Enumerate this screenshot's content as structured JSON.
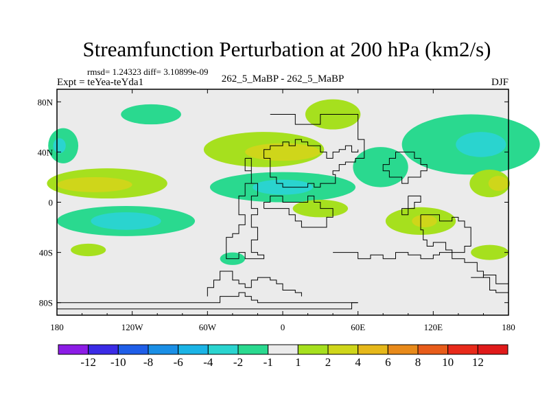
{
  "chart_data": {
    "type": "heatmap",
    "title": "Streamfunction Perturbation at 200 hPa (km2/s)",
    "stats_line": "rmsd= 1.24323 diff= 3.10899e-09",
    "left_label": "Expt = teYea-teYda1",
    "center_label": "262_5_MaBP - 262_5_MaBP",
    "right_label": "DJF",
    "xlim": [
      -180,
      180
    ],
    "ylim": [
      -90,
      90
    ],
    "x_ticks": [
      {
        "value": -180,
        "label": "180"
      },
      {
        "value": -120,
        "label": "120W"
      },
      {
        "value": -60,
        "label": "60W"
      },
      {
        "value": 0,
        "label": "0"
      },
      {
        "value": 60,
        "label": "60E"
      },
      {
        "value": 120,
        "label": "120E"
      },
      {
        "value": 180,
        "label": "180"
      }
    ],
    "y_ticks": [
      {
        "value": 80,
        "label": "80N"
      },
      {
        "value": 40,
        "label": "40N"
      },
      {
        "value": 0,
        "label": "0"
      },
      {
        "value": -40,
        "label": "40S"
      },
      {
        "value": -80,
        "label": "80S"
      }
    ],
    "colorbar": {
      "labels": [
        "-12",
        "-10",
        "-8",
        "-6",
        "-4",
        "-2",
        "-1",
        "1",
        "2",
        "4",
        "6",
        "8",
        "10",
        "12"
      ],
      "colors": [
        "#8c1ce6",
        "#3b2be6",
        "#1f5ee8",
        "#1a8fe6",
        "#1bb4e6",
        "#2ad4cf",
        "#2ad98f",
        "#ebebeb",
        "#a6e01e",
        "#cfd61a",
        "#e6b81a",
        "#e88a1a",
        "#e85c1a",
        "#e82a1a",
        "#e01a1a"
      ]
    },
    "anomaly_regions": [
      {
        "lon": 40,
        "lat": 70,
        "rx": 22,
        "ry": 12,
        "value": 1.5
      },
      {
        "lon": -105,
        "lat": 70,
        "rx": 24,
        "ry": 8,
        "value": -1.5
      },
      {
        "lon": -15,
        "lat": 42,
        "rx": 48,
        "ry": 14,
        "value": 1.5
      },
      {
        "lon": 0,
        "lat": 40,
        "rx": 30,
        "ry": 7,
        "value": 2.5
      },
      {
        "lon": -175,
        "lat": 45,
        "rx": 12,
        "ry": 14,
        "value": -1.5
      },
      {
        "lon": -178,
        "lat": 45,
        "rx": 5,
        "ry": 6,
        "value": -3
      },
      {
        "lon": 150,
        "lat": 46,
        "rx": 55,
        "ry": 24,
        "value": -1.5
      },
      {
        "lon": 158,
        "lat": 46,
        "rx": 20,
        "ry": 10,
        "value": -3
      },
      {
        "lon": 78,
        "lat": 28,
        "rx": 22,
        "ry": 16,
        "value": -1.5
      },
      {
        "lon": -140,
        "lat": 15,
        "rx": 48,
        "ry": 12,
        "value": 1.5
      },
      {
        "lon": -150,
        "lat": 14,
        "rx": 30,
        "ry": 6,
        "value": 2.5
      },
      {
        "lon": 0,
        "lat": 12,
        "rx": 58,
        "ry": 12,
        "value": -1.5
      },
      {
        "lon": 0,
        "lat": 12,
        "rx": 24,
        "ry": 6,
        "value": -3
      },
      {
        "lon": 30,
        "lat": -5,
        "rx": 22,
        "ry": 7,
        "value": 1.5
      },
      {
        "lon": -125,
        "lat": -15,
        "rx": 55,
        "ry": 12,
        "value": -1.5
      },
      {
        "lon": -125,
        "lat": -15,
        "rx": 28,
        "ry": 7,
        "value": -3
      },
      {
        "lon": 110,
        "lat": -15,
        "rx": 28,
        "ry": 11,
        "value": 1.5
      },
      {
        "lon": 113,
        "lat": -15,
        "rx": 10,
        "ry": 5,
        "value": 2.5
      },
      {
        "lon": 165,
        "lat": 15,
        "rx": 16,
        "ry": 11,
        "value": 1.5
      },
      {
        "lon": 172,
        "lat": 15,
        "rx": 8,
        "ry": 6,
        "value": 2.5
      },
      {
        "lon": -155,
        "lat": -38,
        "rx": 14,
        "ry": 5,
        "value": 1.5
      },
      {
        "lon": -40,
        "lat": -45,
        "rx": 10,
        "ry": 5,
        "value": -1.5
      },
      {
        "lon": 165,
        "lat": -40,
        "rx": 15,
        "ry": 6,
        "value": 1.5
      }
    ]
  }
}
